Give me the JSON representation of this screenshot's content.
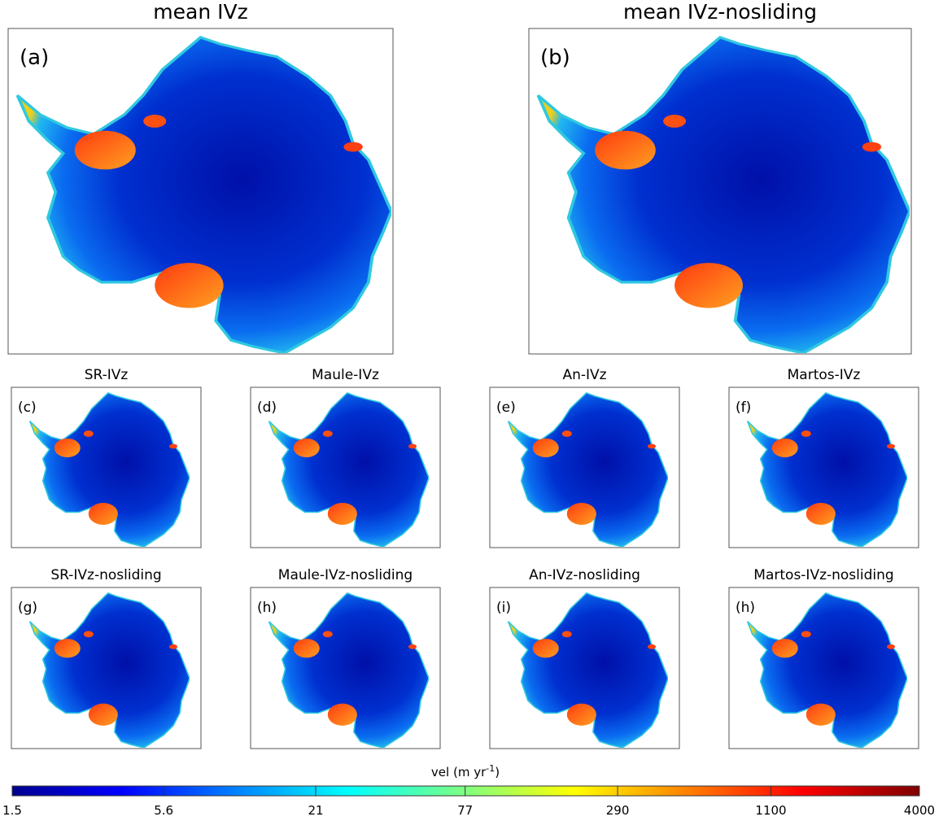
{
  "panels": [
    {
      "title": "mean IVz",
      "label": "(a)"
    },
    {
      "title": "mean IVz-nosliding",
      "label": "(b)"
    },
    {
      "title": "SR-IVz",
      "label": "(c)"
    },
    {
      "title": "Maule-IVz",
      "label": "(d)"
    },
    {
      "title": "An-IVz",
      "label": "(e)"
    },
    {
      "title": "Martos-IVz",
      "label": "(f)"
    },
    {
      "title": "SR-IVz-nosliding",
      "label": "(g)"
    },
    {
      "title": "Maule-IVz-nosliding",
      "label": "(h)"
    },
    {
      "title": "An-IVz-nosliding",
      "label": "(i)"
    },
    {
      "title": "Martos-IVz-nosliding",
      "label": "(h)"
    }
  ],
  "colorbar": {
    "label": {
      "text": "vel (m yr",
      "superscript": "-1",
      "suffix": ")"
    },
    "lim": [
      1.5,
      4000
    ],
    "log": true,
    "ticks": [
      1.5,
      5.6,
      21,
      77,
      290,
      1100,
      4000
    ]
  }
}
